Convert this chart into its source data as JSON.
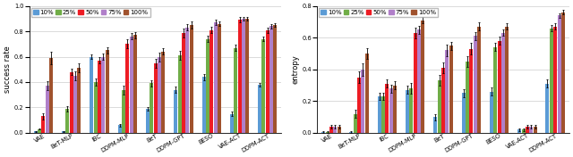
{
  "categories": [
    "VAE",
    "BeT-MLP",
    "IBC",
    "DDPM-MLP",
    "BeT",
    "DDPM-GPT",
    "BESO",
    "VAE-ACT",
    "DDPM-ACT"
  ],
  "legend_labels": [
    "10%",
    "25%",
    "50%",
    "75%",
    "100%"
  ],
  "bar_colors": [
    "#5b9bd5",
    "#70ad47",
    "#ed1c24",
    "#b07fc9",
    "#a0522d"
  ],
  "success_rate": {
    "means": [
      [
        0.01,
        0.03,
        0.13,
        0.37,
        0.59
      ],
      [
        0.01,
        0.19,
        0.48,
        0.45,
        0.51
      ],
      [
        0.6,
        0.4,
        0.57,
        0.6,
        0.65
      ],
      [
        0.06,
        0.34,
        0.7,
        0.76,
        0.77
      ],
      [
        0.19,
        0.39,
        0.55,
        0.6,
        0.64
      ],
      [
        0.34,
        0.61,
        0.79,
        0.83,
        0.85
      ],
      [
        0.44,
        0.74,
        0.81,
        0.87,
        0.86
      ],
      [
        0.15,
        0.67,
        0.89,
        0.9,
        0.9
      ],
      [
        0.38,
        0.74,
        0.81,
        0.84,
        0.85
      ]
    ],
    "errors": [
      [
        0.005,
        0.005,
        0.025,
        0.035,
        0.05
      ],
      [
        0.005,
        0.02,
        0.025,
        0.035,
        0.035
      ],
      [
        0.015,
        0.025,
        0.025,
        0.025,
        0.025
      ],
      [
        0.01,
        0.035,
        0.035,
        0.025,
        0.025
      ],
      [
        0.015,
        0.025,
        0.035,
        0.035,
        0.025
      ],
      [
        0.025,
        0.035,
        0.035,
        0.025,
        0.025
      ],
      [
        0.025,
        0.025,
        0.025,
        0.02,
        0.02
      ],
      [
        0.015,
        0.025,
        0.02,
        0.015,
        0.015
      ],
      [
        0.015,
        0.02,
        0.02,
        0.015,
        0.015
      ]
    ],
    "ylabel": "success rate",
    "ylim": [
      0,
      1.0
    ],
    "yticks": [
      0,
      0.2,
      0.4,
      0.6,
      0.8,
      1.0
    ]
  },
  "entropy": {
    "means": [
      [
        0.005,
        0.005,
        0.04,
        0.04,
        0.04
      ],
      [
        0.005,
        0.12,
        0.35,
        0.4,
        0.5
      ],
      [
        0.23,
        0.23,
        0.31,
        0.28,
        0.3
      ],
      [
        0.27,
        0.28,
        0.63,
        0.65,
        0.71
      ],
      [
        0.1,
        0.33,
        0.41,
        0.52,
        0.55
      ],
      [
        0.25,
        0.45,
        0.53,
        0.61,
        0.67
      ],
      [
        0.26,
        0.54,
        0.58,
        0.63,
        0.67
      ],
      [
        0.02,
        0.02,
        0.04,
        0.04,
        0.04
      ],
      [
        0.31,
        0.66,
        0.67,
        0.74,
        0.76
      ]
    ],
    "errors": [
      [
        0.005,
        0.005,
        0.01,
        0.01,
        0.01
      ],
      [
        0.005,
        0.025,
        0.035,
        0.04,
        0.035
      ],
      [
        0.025,
        0.025,
        0.025,
        0.025,
        0.025
      ],
      [
        0.025,
        0.035,
        0.035,
        0.025,
        0.02
      ],
      [
        0.02,
        0.035,
        0.035,
        0.035,
        0.025
      ],
      [
        0.025,
        0.035,
        0.035,
        0.025,
        0.025
      ],
      [
        0.025,
        0.025,
        0.025,
        0.02,
        0.02
      ],
      [
        0.01,
        0.01,
        0.01,
        0.01,
        0.01
      ],
      [
        0.025,
        0.02,
        0.02,
        0.015,
        0.015
      ]
    ],
    "ylabel": "entropy",
    "ylim": [
      0,
      0.8
    ],
    "yticks": [
      0,
      0.2,
      0.4,
      0.6,
      0.8
    ]
  },
  "figsize": [
    6.4,
    1.76
  ],
  "dpi": 100,
  "tick_fontsize": 4.8,
  "label_fontsize": 6.0,
  "legend_fontsize": 5.0,
  "background_color": "#ffffff"
}
